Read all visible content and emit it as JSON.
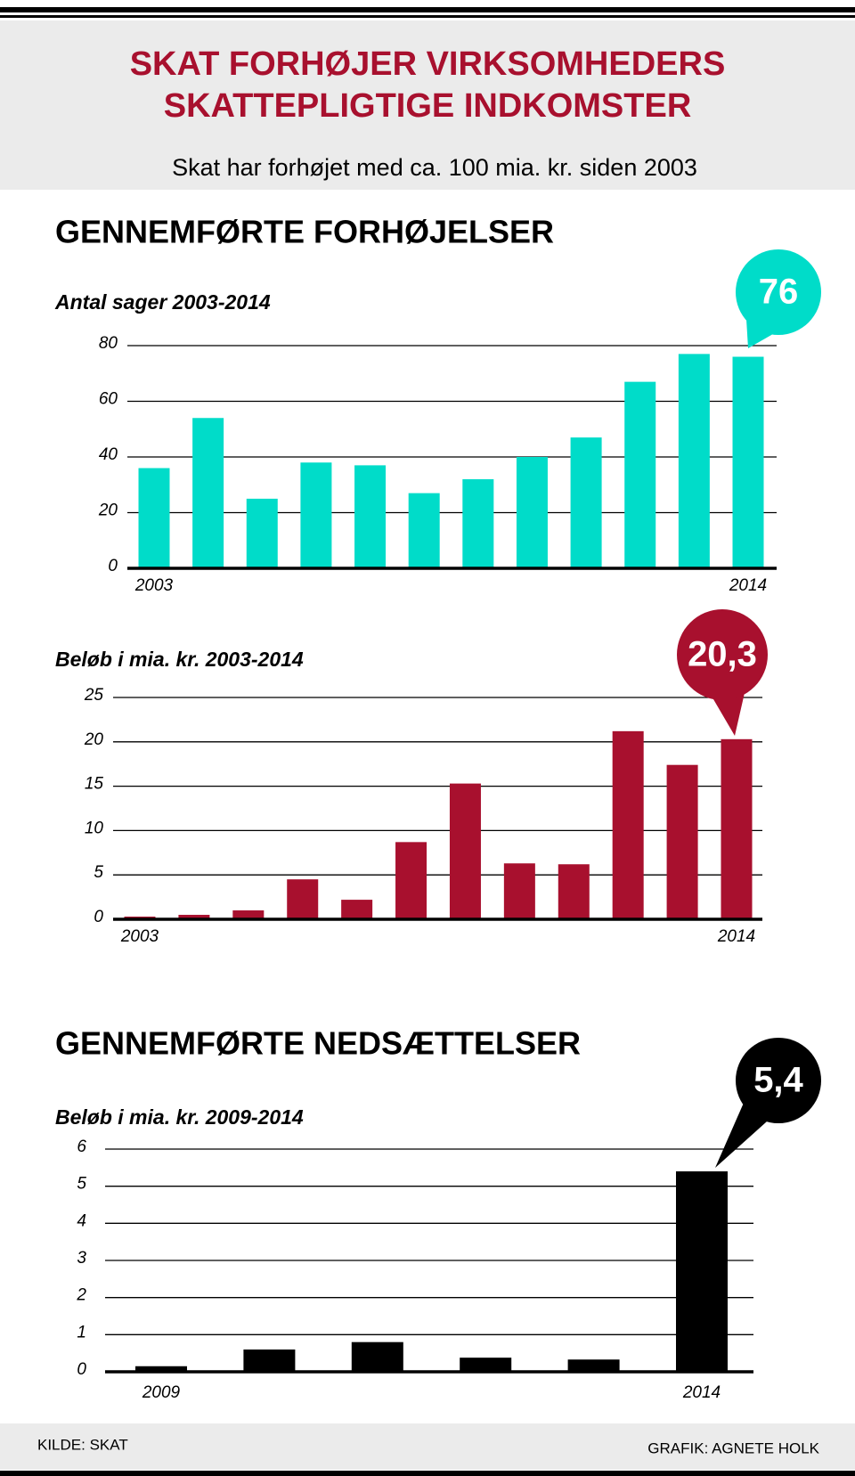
{
  "header": {
    "title_lines": [
      "SKAT FORHØJER VIRKSOMHEDERS",
      "SKATTEPLIGTIGE INDKOMSTER"
    ],
    "subtitle": "Skat har forhøjet med ca. 100 mia. kr. siden 2003"
  },
  "sections": [
    "GENNEMFØRTE FORHØJELSER",
    "GENNEMFØRTE NEDSÆTTELSER"
  ],
  "chart_data": [
    {
      "type": "bar",
      "title": "Antal sager 2003-2014",
      "color": "#00dcc9",
      "categories": [
        "2003",
        null,
        null,
        null,
        null,
        null,
        null,
        null,
        null,
        null,
        null,
        "2014"
      ],
      "values": [
        36,
        54,
        25,
        38,
        37,
        27,
        32,
        40,
        47,
        67,
        77,
        76
      ],
      "ylim": [
        0,
        80
      ],
      "yticks": [
        0,
        20,
        40,
        60,
        80
      ],
      "grid": true
    },
    {
      "type": "bar",
      "title": "Beløb i mia. kr. 2003-2014",
      "color": "#a8102e",
      "categories": [
        "2003",
        null,
        null,
        null,
        null,
        null,
        null,
        null,
        null,
        null,
        null,
        "2014"
      ],
      "values": [
        0.3,
        0.5,
        1.0,
        4.5,
        2.2,
        8.7,
        15.3,
        6.3,
        6.2,
        21.2,
        17.4,
        20.3
      ],
      "value_labels": [
        null,
        null,
        null,
        null,
        null,
        null,
        null,
        null,
        null,
        null,
        null,
        "20,3"
      ],
      "ylim": [
        0,
        25
      ],
      "yticks": [
        0,
        5,
        10,
        15,
        20,
        25
      ],
      "grid": true
    },
    {
      "type": "bar",
      "title": "Beløb i mia. kr. 2009-2014",
      "color": "#000000",
      "categories": [
        "2009",
        null,
        null,
        null,
        null,
        "2014"
      ],
      "values": [
        0.15,
        0.6,
        0.8,
        0.38,
        0.33,
        5.4
      ],
      "value_labels": [
        null,
        null,
        null,
        null,
        null,
        "5,4"
      ],
      "ylim": [
        0,
        6
      ],
      "yticks": [
        0,
        1,
        2,
        3,
        4,
        5,
        6
      ],
      "grid": true
    }
  ],
  "footer": {
    "source": "KILDE: SKAT",
    "credit": "GRAFIK: AGNETE HOLK"
  }
}
